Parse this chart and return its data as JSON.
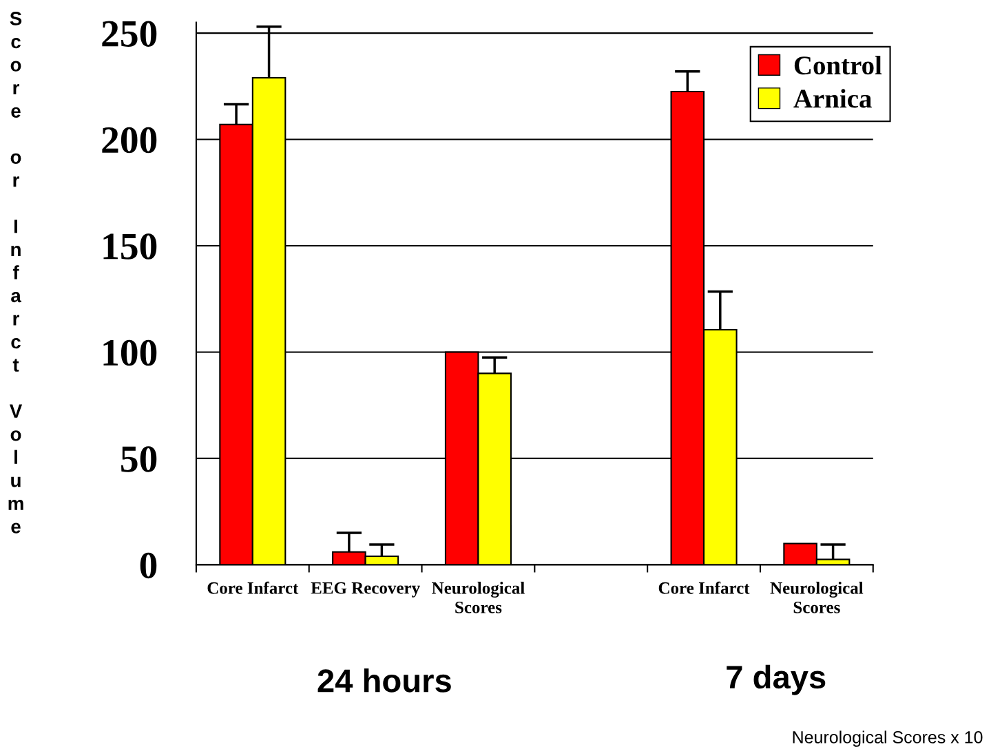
{
  "chart_data": {
    "type": "bar",
    "ylabel": "Score or Infarct Volume",
    "categories": [
      "Core Infarct",
      "EEG Recovery",
      "Neurological\nScores",
      null,
      "Core Infarct",
      "Neurological\nScores"
    ],
    "series": [
      {
        "name": "Control",
        "color": "#ff0000",
        "values": [
          207,
          6,
          100,
          null,
          222.5,
          10
        ],
        "errors": [
          [
            207,
            216.5
          ],
          [
            6,
            15
          ],
          null,
          null,
          [
            222.5,
            232
          ],
          null
        ]
      },
      {
        "name": "Arnica",
        "color": "#ffff00",
        "values": [
          229,
          4,
          90,
          null,
          110.5,
          2.5
        ],
        "errors": [
          [
            229,
            253
          ],
          [
            4,
            9.5
          ],
          [
            90,
            97.5
          ],
          null,
          [
            110.5,
            128.5
          ],
          [
            2.5,
            9.5
          ]
        ]
      }
    ],
    "ylim": [
      0,
      255
    ],
    "yticks": [
      0,
      50,
      100,
      150,
      200,
      250
    ],
    "grid": "y",
    "legend": "top right",
    "annotations": [
      "24 hours",
      "7 days",
      "Neurological Scores x 10"
    ]
  }
}
